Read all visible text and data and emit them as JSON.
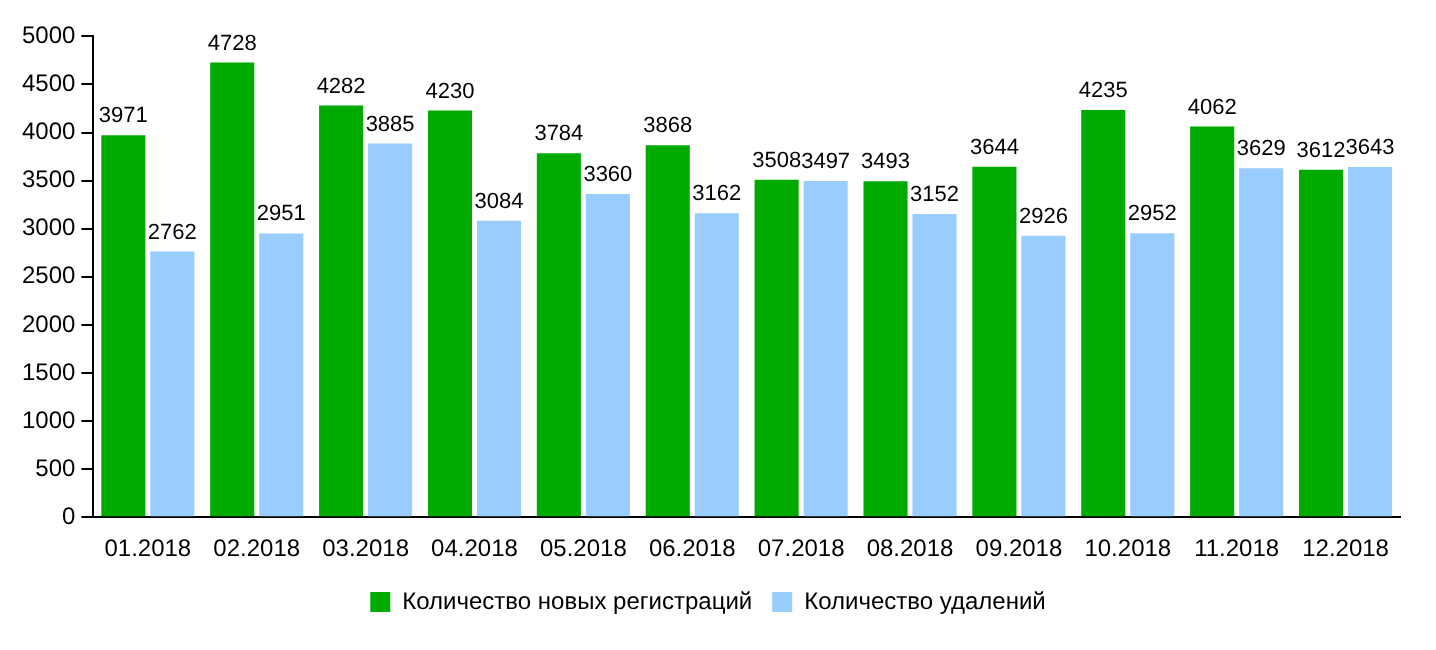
{
  "chart_data": {
    "type": "bar",
    "categories": [
      "01.2018",
      "02.2018",
      "03.2018",
      "04.2018",
      "05.2018",
      "06.2018",
      "07.2018",
      "08.2018",
      "09.2018",
      "10.2018",
      "11.2018",
      "12.2018"
    ],
    "series": [
      {
        "name": "Количество новых регистраций",
        "color": "#00aa00",
        "values": [
          3971,
          4728,
          4282,
          4230,
          3784,
          3868,
          3508,
          3493,
          3644,
          4235,
          4062,
          3612
        ]
      },
      {
        "name": "Количество удалений",
        "color": "#99ccff",
        "values": [
          2762,
          2951,
          3885,
          3084,
          3360,
          3162,
          3497,
          3152,
          2926,
          2952,
          3629,
          3643
        ]
      }
    ],
    "ylim": [
      0,
      5000
    ],
    "yticks": [
      0,
      500,
      1000,
      1500,
      2000,
      2500,
      3000,
      3500,
      4000,
      4500,
      5000
    ],
    "grid": false,
    "legend": "bottom",
    "data_labels": true
  }
}
